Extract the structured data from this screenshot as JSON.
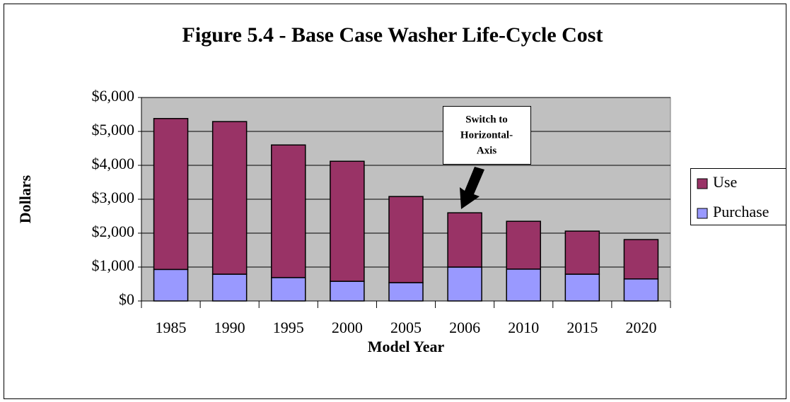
{
  "chart_data": {
    "type": "stacked_bar",
    "title": "Figure 5.4 - Base Case Washer Life-Cycle Cost",
    "x_label": "Model Year",
    "y_label": "Dollars",
    "categories": [
      "1985",
      "1990",
      "1995",
      "2000",
      "2005",
      "2006",
      "2010",
      "2015",
      "2020"
    ],
    "series": [
      {
        "name": "Purchase",
        "color": "#9999ff",
        "values": [
          930,
          790,
          690,
          580,
          540,
          1000,
          940,
          790,
          650
        ]
      },
      {
        "name": "Use",
        "color": "#993366",
        "values": [
          4450,
          4500,
          3910,
          3540,
          2540,
          1600,
          1410,
          1270,
          1160
        ]
      }
    ],
    "ylim": [
      0,
      6000
    ],
    "yticks": [
      {
        "value": 0,
        "label": "$0"
      },
      {
        "value": 1000,
        "label": "$1,000"
      },
      {
        "value": 2000,
        "label": "$2,000"
      },
      {
        "value": 3000,
        "label": "$3,000"
      },
      {
        "value": 4000,
        "label": "$4,000"
      },
      {
        "value": 5000,
        "label": "$5,000"
      },
      {
        "value": 6000,
        "label": "$6,000"
      }
    ],
    "grid": true,
    "legend": "right",
    "annotation": [
      "Switch to",
      "Horizontal-",
      "Axis"
    ]
  }
}
